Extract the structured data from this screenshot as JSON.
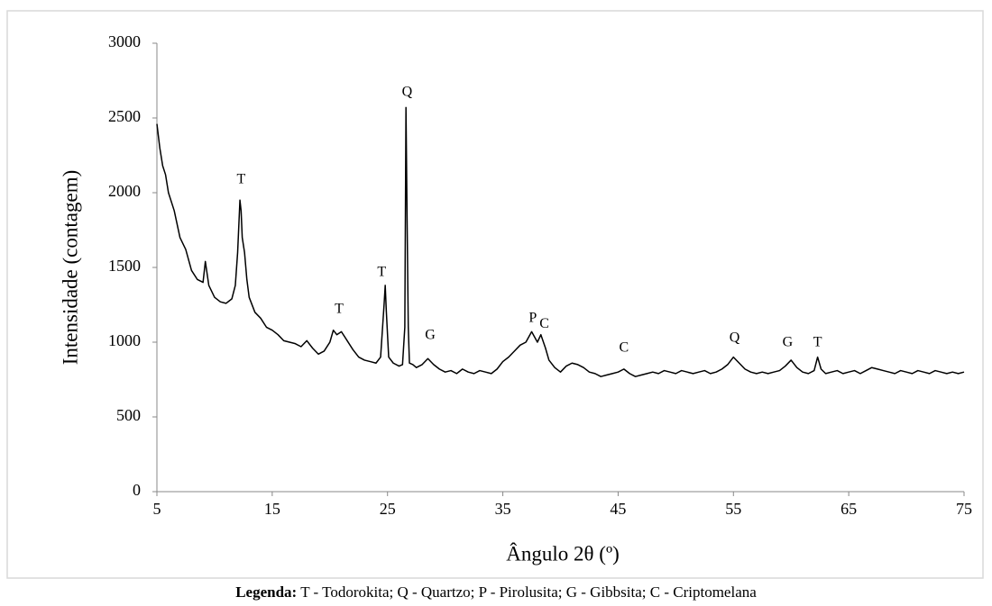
{
  "chart_data": {
    "type": "line",
    "xlabel": "Ângulo 2θ (º)",
    "ylabel": "Intensidade (contagem)",
    "color": "#000000",
    "xlim": [
      5,
      75
    ],
    "xticks": [
      5,
      15,
      25,
      35,
      45,
      55,
      65,
      75
    ],
    "ylim": [
      0,
      3000
    ],
    "yticks": [
      0,
      500,
      1000,
      1500,
      2000,
      2500,
      3000
    ],
    "x": [
      5,
      5.25,
      5.5,
      5.75,
      6,
      6.5,
      7,
      7.5,
      8,
      8.5,
      9,
      9.2,
      9.5,
      10,
      10.5,
      11,
      11.5,
      11.8,
      12,
      12.2,
      12.3,
      12.4,
      12.6,
      12.8,
      13,
      13.5,
      14,
      14.5,
      15,
      15.5,
      16,
      16.5,
      17,
      17.5,
      18,
      18.5,
      19,
      19.5,
      20,
      20.3,
      20.6,
      21,
      21.5,
      22,
      22.5,
      23,
      23.5,
      24,
      24.4,
      24.7,
      24.8,
      24.9,
      25.1,
      25.5,
      26,
      26.3,
      26.5,
      26.6,
      26.7,
      26.8,
      26.9,
      27.2,
      27.5,
      28,
      28.5,
      29,
      29.5,
      30,
      30.5,
      31,
      31.5,
      32,
      32.5,
      33,
      33.5,
      34,
      34.5,
      35,
      35.5,
      36,
      36.5,
      37,
      37.5,
      38,
      38.3,
      38.7,
      39,
      39.5,
      40,
      40.5,
      41,
      41.5,
      42,
      42.5,
      43,
      43.5,
      44,
      44.5,
      45,
      45.5,
      46,
      46.5,
      47,
      47.5,
      48,
      48.5,
      49,
      49.5,
      50,
      50.5,
      51,
      51.5,
      52,
      52.5,
      53,
      53.5,
      54,
      54.5,
      55,
      55.5,
      56,
      56.5,
      57,
      57.5,
      58,
      58.5,
      59,
      59.5,
      60,
      60.5,
      61,
      61.5,
      62,
      62.3,
      62.6,
      63,
      63.5,
      64,
      64.5,
      65,
      65.5,
      66,
      66.5,
      67,
      67.5,
      68,
      68.5,
      69,
      69.5,
      70,
      70.5,
      71,
      71.5,
      72,
      72.5,
      73,
      73.5,
      74,
      74.5,
      75
    ],
    "values": [
      2460,
      2300,
      2180,
      2120,
      2000,
      1880,
      1700,
      1620,
      1480,
      1420,
      1400,
      1540,
      1380,
      1300,
      1270,
      1260,
      1290,
      1380,
      1600,
      1950,
      1880,
      1700,
      1600,
      1420,
      1300,
      1200,
      1160,
      1100,
      1080,
      1050,
      1010,
      1000,
      990,
      970,
      1010,
      960,
      920,
      940,
      1000,
      1080,
      1050,
      1070,
      1010,
      950,
      900,
      880,
      870,
      860,
      900,
      1250,
      1380,
      1200,
      900,
      860,
      840,
      850,
      1100,
      2570,
      1800,
      1100,
      860,
      850,
      830,
      850,
      890,
      850,
      820,
      800,
      810,
      790,
      820,
      800,
      790,
      810,
      800,
      790,
      820,
      870,
      900,
      940,
      980,
      1000,
      1070,
      1000,
      1050,
      960,
      880,
      830,
      800,
      840,
      860,
      850,
      830,
      800,
      790,
      770,
      780,
      790,
      800,
      820,
      790,
      770,
      780,
      790,
      800,
      790,
      810,
      800,
      790,
      810,
      800,
      790,
      800,
      810,
      790,
      800,
      820,
      850,
      900,
      860,
      820,
      800,
      790,
      800,
      790,
      800,
      810,
      840,
      880,
      830,
      800,
      790,
      810,
      900,
      820,
      790,
      800,
      810,
      790,
      800,
      810,
      790,
      810,
      830,
      820,
      810,
      800,
      790,
      810,
      800,
      790,
      810,
      800,
      790,
      810,
      800,
      790,
      800,
      790,
      800
    ],
    "annotations": [
      {
        "text": "T",
        "x": 12.3,
        "y": 2084
      },
      {
        "text": "T",
        "x": 20.8,
        "y": 1217
      },
      {
        "text": "T",
        "x": 24.5,
        "y": 1464
      },
      {
        "text": "Q",
        "x": 26.7,
        "y": 2669
      },
      {
        "text": "G",
        "x": 28.7,
        "y": 1042
      },
      {
        "text": "P",
        "x": 37.6,
        "y": 1157
      },
      {
        "text": "C",
        "x": 38.6,
        "y": 1120
      },
      {
        "text": "C",
        "x": 45.5,
        "y": 958
      },
      {
        "text": "Q",
        "x": 55.1,
        "y": 1024
      },
      {
        "text": "G",
        "x": 59.7,
        "y": 994
      },
      {
        "text": "T",
        "x": 62.3,
        "y": 994
      }
    ]
  },
  "caption": {
    "label": "Legenda:",
    "text": "T - Todorokita; Q - Quartzo; P - Pirolusita; G - Gibbsita; C - Criptomelana"
  }
}
